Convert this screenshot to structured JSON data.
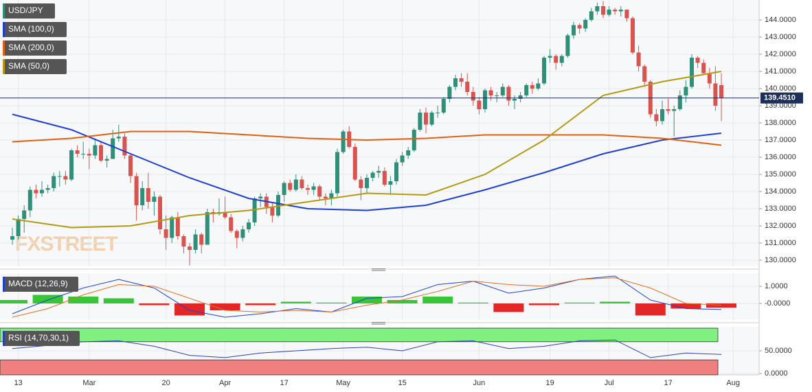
{
  "chart_data": [
    {
      "type": "candlestick",
      "name": "USD/JPY",
      "watermark": "FXSTREET",
      "up_color": "#2f8f79",
      "down_color": "#d9534f",
      "ylim": [
        129.64,
        145.16
      ],
      "yticks": [
        {
          "value": 130,
          "label": "130.0000"
        },
        {
          "value": 131,
          "label": "131.0000"
        },
        {
          "value": 132,
          "label": "132.0000"
        },
        {
          "value": 133,
          "label": "133.0000"
        },
        {
          "value": 134,
          "label": "134.0000"
        },
        {
          "value": 135,
          "label": "135.0000"
        },
        {
          "value": 136,
          "label": "136.0000"
        },
        {
          "value": 137,
          "label": "137.0000"
        },
        {
          "value": 138,
          "label": "138.0000"
        },
        {
          "value": 139,
          "label": "139.0000"
        },
        {
          "value": 140,
          "label": "140.0000"
        },
        {
          "value": 141,
          "label": "141.0000"
        },
        {
          "value": 142,
          "label": "142.0000"
        },
        {
          "value": 143,
          "label": "143.0000"
        },
        {
          "value": 144,
          "label": "144.0000"
        }
      ],
      "xticks": [
        {
          "value": 1,
          "label": "13"
        },
        {
          "value": 13,
          "label": "Mar"
        },
        {
          "value": 26,
          "label": "20"
        },
        {
          "value": 36,
          "label": "Apr"
        },
        {
          "value": 46,
          "label": "17"
        },
        {
          "value": 56,
          "label": "May"
        },
        {
          "value": 66,
          "label": "15"
        },
        {
          "value": 79,
          "label": "Jun"
        },
        {
          "value": 91,
          "label": "19"
        },
        {
          "value": 101,
          "label": "Jul"
        },
        {
          "value": 111,
          "label": "17"
        },
        {
          "value": 122,
          "label": "Aug"
        }
      ],
      "last_price": {
        "value": 139.451,
        "label": "139.4510"
      },
      "candles": [
        [
          131.2,
          131.9,
          130.9,
          131.4
        ],
        [
          131.4,
          132.6,
          131.2,
          132.4
        ],
        [
          132.4,
          133.2,
          131.6,
          132.9
        ],
        [
          132.9,
          134.3,
          132.5,
          134.1
        ],
        [
          134.1,
          134.4,
          133.6,
          133.9
        ],
        [
          133.9,
          134.6,
          133.7,
          134.1
        ],
        [
          134.1,
          134.4,
          133.9,
          134.2
        ],
        [
          134.2,
          135.1,
          134.0,
          134.9
        ],
        [
          134.9,
          135.2,
          134.3,
          134.9
        ],
        [
          134.9,
          135.2,
          134.4,
          134.7
        ],
        [
          134.7,
          136.5,
          134.6,
          136.4
        ],
        [
          136.4,
          136.7,
          136.0,
          136.2
        ],
        [
          136.2,
          136.9,
          135.9,
          136.2
        ],
        [
          136.2,
          136.5,
          135.3,
          136.1
        ],
        [
          136.1,
          137.1,
          135.9,
          136.7
        ],
        [
          136.7,
          136.9,
          135.7,
          135.8
        ],
        [
          135.8,
          136.1,
          135.4,
          135.9
        ],
        [
          135.9,
          137.6,
          135.9,
          137.1
        ],
        [
          137.1,
          137.9,
          136.9,
          137.2
        ],
        [
          137.2,
          137.4,
          135.9,
          136.1
        ],
        [
          136.1,
          136.2,
          134.5,
          134.9
        ],
        [
          134.9,
          135.1,
          132.3,
          133.2
        ],
        [
          133.2,
          134.6,
          132.9,
          134.2
        ],
        [
          134.2,
          135.1,
          133.0,
          133.4
        ],
        [
          133.4,
          134.0,
          132.6,
          133.7
        ],
        [
          133.7,
          133.8,
          131.5,
          131.8
        ],
        [
          131.8,
          132.6,
          130.6,
          131.3
        ],
        [
          131.3,
          132.6,
          131.0,
          132.5
        ],
        [
          132.5,
          132.8,
          131.2,
          131.4
        ],
        [
          131.4,
          131.5,
          130.4,
          130.8
        ],
        [
          130.8,
          131.0,
          129.7,
          130.6
        ],
        [
          130.6,
          131.8,
          130.4,
          131.5
        ],
        [
          131.5,
          131.6,
          130.4,
          130.9
        ],
        [
          130.9,
          133.0,
          130.9,
          132.8
        ],
        [
          132.8,
          133.0,
          132.2,
          132.7
        ],
        [
          132.7,
          133.6,
          132.6,
          132.8
        ],
        [
          132.8,
          133.7,
          132.4,
          132.5
        ],
        [
          132.5,
          132.7,
          131.6,
          131.7
        ],
        [
          131.7,
          131.8,
          130.7,
          131.3
        ],
        [
          131.3,
          132.0,
          131.1,
          131.8
        ],
        [
          131.8,
          132.4,
          131.6,
          132.2
        ],
        [
          132.2,
          133.7,
          132.0,
          133.6
        ],
        [
          133.6,
          133.9,
          133.1,
          133.7
        ],
        [
          133.7,
          133.9,
          132.7,
          133.1
        ],
        [
          133.1,
          133.4,
          132.2,
          132.6
        ],
        [
          132.6,
          134.0,
          132.5,
          133.8
        ],
        [
          133.8,
          134.6,
          133.4,
          134.5
        ],
        [
          134.5,
          134.7,
          134.0,
          134.1
        ],
        [
          134.1,
          135.0,
          134.0,
          134.7
        ],
        [
          134.7,
          134.9,
          134.1,
          134.2
        ],
        [
          134.2,
          134.4,
          133.8,
          134.1
        ],
        [
          134.1,
          134.5,
          133.8,
          134.3
        ],
        [
          134.3,
          134.4,
          133.5,
          133.7
        ],
        [
          133.7,
          133.9,
          133.2,
          133.6
        ],
        [
          133.6,
          134.1,
          133.2,
          133.9
        ],
        [
          133.9,
          136.5,
          133.7,
          136.3
        ],
        [
          136.3,
          137.6,
          136.2,
          137.5
        ],
        [
          137.5,
          137.8,
          136.5,
          136.6
        ],
        [
          136.6,
          136.8,
          134.6,
          134.7
        ],
        [
          134.7,
          134.9,
          133.5,
          134.2
        ],
        [
          134.2,
          135.0,
          133.9,
          134.8
        ],
        [
          134.8,
          135.2,
          134.6,
          135.1
        ],
        [
          135.1,
          135.5,
          134.8,
          135.2
        ],
        [
          135.2,
          135.4,
          134.3,
          134.4
        ],
        [
          134.4,
          134.9,
          133.8,
          134.6
        ],
        [
          134.6,
          135.9,
          134.4,
          135.7
        ],
        [
          135.7,
          136.3,
          135.5,
          136.1
        ],
        [
          136.1,
          136.6,
          135.9,
          136.4
        ],
        [
          136.4,
          137.7,
          136.3,
          137.6
        ],
        [
          137.6,
          138.8,
          137.5,
          138.6
        ],
        [
          138.6,
          138.9,
          137.4,
          137.9
        ],
        [
          137.9,
          138.7,
          137.8,
          138.6
        ],
        [
          138.6,
          139.0,
          138.3,
          138.6
        ],
        [
          138.6,
          139.5,
          138.5,
          139.4
        ],
        [
          139.4,
          140.2,
          139.2,
          140.1
        ],
        [
          140.1,
          140.8,
          139.9,
          140.6
        ],
        [
          140.6,
          140.9,
          140.1,
          140.4
        ],
        [
          140.4,
          140.9,
          139.6,
          139.8
        ],
        [
          139.8,
          140.1,
          139.0,
          139.3
        ],
        [
          139.3,
          139.5,
          138.5,
          138.8
        ],
        [
          138.8,
          140.0,
          138.6,
          139.9
        ],
        [
          139.9,
          140.1,
          139.3,
          139.6
        ],
        [
          139.6,
          139.8,
          139.2,
          139.6
        ],
        [
          139.6,
          140.3,
          139.5,
          140.1
        ],
        [
          140.1,
          140.2,
          139.0,
          139.3
        ],
        [
          139.3,
          139.6,
          138.8,
          139.4
        ],
        [
          139.4,
          139.8,
          139.2,
          139.6
        ],
        [
          139.6,
          140.3,
          139.5,
          140.2
        ],
        [
          140.2,
          140.4,
          139.7,
          140.0
        ],
        [
          140.0,
          140.6,
          139.9,
          140.3
        ],
        [
          140.3,
          141.9,
          140.2,
          141.8
        ],
        [
          141.8,
          142.3,
          141.5,
          141.9
        ],
        [
          141.9,
          142.0,
          141.1,
          141.5
        ],
        [
          141.5,
          142.0,
          141.3,
          141.9
        ],
        [
          141.9,
          143.2,
          141.8,
          143.1
        ],
        [
          143.1,
          143.9,
          142.9,
          143.7
        ],
        [
          143.7,
          143.8,
          143.2,
          143.5
        ],
        [
          143.5,
          144.1,
          143.3,
          144.0
        ],
        [
          144.0,
          144.7,
          143.9,
          144.5
        ],
        [
          144.5,
          145.0,
          144.3,
          144.8
        ],
        [
          144.8,
          145.1,
          144.1,
          144.3
        ],
        [
          144.3,
          144.8,
          144.2,
          144.6
        ],
        [
          144.6,
          144.7,
          144.3,
          144.5
        ],
        [
          144.5,
          144.8,
          144.2,
          144.6
        ],
        [
          144.6,
          144.6,
          143.9,
          144.1
        ],
        [
          144.1,
          144.2,
          142.0,
          142.1
        ],
        [
          142.1,
          142.5,
          141.0,
          141.3
        ],
        [
          141.3,
          141.4,
          140.1,
          140.4
        ],
        [
          140.4,
          140.5,
          138.3,
          138.5
        ],
        [
          138.5,
          138.8,
          137.8,
          138.1
        ],
        [
          138.1,
          139.3,
          137.9,
          138.8
        ],
        [
          138.8,
          139.4,
          138.5,
          138.7
        ],
        [
          138.7,
          139.0,
          137.2,
          138.8
        ],
        [
          138.8,
          139.9,
          138.7,
          139.6
        ],
        [
          139.6,
          140.5,
          139.2,
          140.1
        ],
        [
          140.1,
          142.0,
          140.0,
          141.8
        ],
        [
          141.8,
          141.9,
          141.2,
          141.5
        ],
        [
          141.5,
          141.7,
          140.8,
          140.9
        ],
        [
          140.9,
          141.2,
          140.0,
          140.3
        ],
        [
          140.3,
          141.3,
          138.7,
          139.0
        ],
        [
          140.2,
          140.9,
          138.1,
          139.45
        ]
      ],
      "series": [
        {
          "name": "SMA (100,0)",
          "color": "#1f3fd0",
          "x": [
            0,
            10,
            20,
            30,
            40,
            50,
            60,
            70,
            80,
            90,
            100,
            110,
            120
          ],
          "values": [
            138.5,
            137.6,
            136.2,
            134.8,
            133.6,
            133.0,
            132.9,
            133.2,
            134.1,
            135.1,
            136.2,
            137.0,
            137.4
          ]
        },
        {
          "name": "SMA (200,0)",
          "color": "#e06010",
          "x": [
            0,
            10,
            20,
            30,
            40,
            50,
            60,
            70,
            80,
            90,
            100,
            110,
            120
          ],
          "values": [
            136.9,
            137.1,
            137.5,
            137.5,
            137.3,
            137.1,
            137.0,
            137.1,
            137.3,
            137.3,
            137.3,
            137.1,
            136.7
          ]
        },
        {
          "name": "SMA (50,0)",
          "color": "#b39a10",
          "x": [
            0,
            10,
            20,
            30,
            40,
            50,
            60,
            70,
            80,
            90,
            100,
            110,
            120
          ],
          "values": [
            132.4,
            131.9,
            132.0,
            132.6,
            132.9,
            133.4,
            133.9,
            133.8,
            135.0,
            137.0,
            139.6,
            140.4,
            141.0
          ]
        }
      ]
    },
    {
      "type": "macd",
      "name": "MACD (12,26,9)",
      "ylim": [
        -0.96,
        1.76
      ],
      "yticks": [
        {
          "value": 1,
          "label": "1.0000"
        },
        {
          "value": 0,
          "label": "-0.0000"
        }
      ],
      "x": [
        0,
        6,
        12,
        18,
        24,
        30,
        36,
        42,
        48,
        54,
        60,
        66,
        72,
        78,
        84,
        90,
        96,
        102,
        108,
        114,
        120
      ],
      "series": [
        {
          "color": "#2040d0",
          "values": [
            -0.6,
            0.2,
            0.9,
            1.4,
            0.9,
            -0.4,
            -0.8,
            -0.6,
            -0.3,
            -0.5,
            0.3,
            0.4,
            1.1,
            1.3,
            0.6,
            0.9,
            1.4,
            1.6,
            0.2,
            -0.3,
            -0.35
          ]
        },
        {
          "color": "#e07020",
          "values": [
            -0.8,
            -0.3,
            0.5,
            1.1,
            1.0,
            0.3,
            -0.4,
            -0.5,
            -0.4,
            -0.5,
            -0.1,
            0.2,
            0.7,
            1.3,
            1.1,
            1.0,
            1.4,
            1.5,
            0.9,
            0.0,
            -0.1
          ]
        }
      ],
      "histogram": [
        0.2,
        0.5,
        0.4,
        0.3,
        -0.1,
        -0.7,
        -0.4,
        -0.1,
        0.1,
        0.05,
        0.4,
        0.2,
        0.4,
        0.05,
        -0.5,
        -0.1,
        0.05,
        0.1,
        -0.7,
        -0.3,
        -0.25
      ],
      "up_color": "#22c022",
      "down_color": "#e01010"
    },
    {
      "type": "line",
      "name": "RSI (14,70,30,1)",
      "ylim": [
        -3,
        103
      ],
      "upper": 70,
      "lower": 30,
      "yticks": [
        {
          "value": 50,
          "label": "50.0000"
        },
        {
          "value": 0,
          "label": "0.0000"
        }
      ],
      "x": [
        0,
        6,
        12,
        18,
        24,
        30,
        36,
        42,
        48,
        54,
        60,
        66,
        72,
        78,
        84,
        90,
        96,
        102,
        108,
        114,
        120
      ],
      "color": "#2a3fb0",
      "values": [
        55,
        62,
        70,
        72,
        60,
        40,
        35,
        45,
        50,
        55,
        58,
        50,
        70,
        72,
        55,
        60,
        72,
        74,
        35,
        45,
        42
      ]
    }
  ]
}
